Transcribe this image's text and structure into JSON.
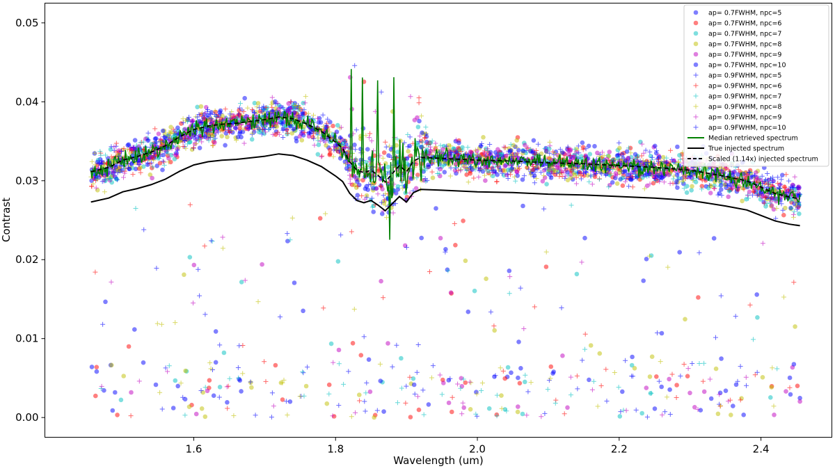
{
  "chart_data": {
    "type": "scatter",
    "title": "",
    "xlabel": "Wavelength (um)",
    "ylabel": "Contrast",
    "xlim": [
      1.39,
      2.5
    ],
    "ylim": [
      -0.0025,
      0.0525
    ],
    "xticks": [
      1.6,
      1.8,
      2.0,
      2.2,
      2.4
    ],
    "xtick_labels": [
      "1.6",
      "1.8",
      "2.0",
      "2.2",
      "2.4"
    ],
    "yticks": [
      0.0,
      0.01,
      0.02,
      0.03,
      0.04,
      0.05
    ],
    "ytick_labels": [
      "0.00",
      "0.01",
      "0.02",
      "0.03",
      "0.04",
      "0.05"
    ],
    "grid": false,
    "legend_position": "top-right",
    "wavelength_range": [
      1.455,
      2.455
    ],
    "series": [
      {
        "name": "ap= 0.7FWHM, npc=5",
        "marker": "circle",
        "color": "#0000ff"
      },
      {
        "name": "ap= 0.7FWHM, npc=6",
        "marker": "circle",
        "color": "#ff0000"
      },
      {
        "name": "ap= 0.7FWHM, npc=7",
        "marker": "circle",
        "color": "#00bfbf"
      },
      {
        "name": "ap= 0.7FWHM, npc=8",
        "marker": "circle",
        "color": "#bfbf00"
      },
      {
        "name": "ap= 0.7FWHM, npc=9",
        "marker": "circle",
        "color": "#bf00bf"
      },
      {
        "name": "ap= 0.7FWHM, npc=10",
        "marker": "circle",
        "color": "#0000ff"
      },
      {
        "name": "ap= 0.9FWHM, npc=5",
        "marker": "plus",
        "color": "#0000ff"
      },
      {
        "name": "ap= 0.9FWHM, npc=6",
        "marker": "plus",
        "color": "#ff0000"
      },
      {
        "name": "ap= 0.9FWHM, npc=7",
        "marker": "plus",
        "color": "#00bfbf"
      },
      {
        "name": "ap= 0.9FWHM, npc=8",
        "marker": "plus",
        "color": "#bfbf00"
      },
      {
        "name": "ap= 0.9FWHM, npc=9",
        "marker": "plus",
        "color": "#bf00bf"
      },
      {
        "name": "ap= 0.9FWHM, npc=10",
        "marker": "plus",
        "color": "#0000ff"
      }
    ],
    "lines": [
      {
        "name": "Median retrieved spectrum",
        "color": "#008000",
        "style": "solid"
      },
      {
        "name": "True injected spectrum",
        "color": "#000000",
        "style": "solid",
        "x": [
          1.455,
          1.48,
          1.5,
          1.52,
          1.54,
          1.56,
          1.58,
          1.6,
          1.62,
          1.64,
          1.66,
          1.68,
          1.7,
          1.72,
          1.74,
          1.76,
          1.78,
          1.8,
          1.81,
          1.82,
          1.83,
          1.84,
          1.85,
          1.86,
          1.87,
          1.88,
          1.89,
          1.9,
          1.91,
          1.92,
          1.95,
          2.0,
          2.05,
          2.1,
          2.15,
          2.2,
          2.25,
          2.3,
          2.35,
          2.38,
          2.4,
          2.42,
          2.44,
          2.455
        ],
        "y": [
          0.0273,
          0.0278,
          0.0286,
          0.029,
          0.0295,
          0.0302,
          0.0312,
          0.032,
          0.0324,
          0.0326,
          0.0327,
          0.0329,
          0.0331,
          0.0334,
          0.0332,
          0.0326,
          0.0318,
          0.0306,
          0.0299,
          0.0284,
          0.0275,
          0.0272,
          0.0275,
          0.0269,
          0.0262,
          0.0271,
          0.028,
          0.0273,
          0.0285,
          0.0289,
          0.0288,
          0.0286,
          0.0285,
          0.0283,
          0.0282,
          0.028,
          0.0278,
          0.0275,
          0.0268,
          0.0263,
          0.0256,
          0.0249,
          0.0245,
          0.0243
        ]
      },
      {
        "name": "Scaled (1.14x) injected spectrum",
        "color": "#000000",
        "style": "dashed",
        "scale": 1.14
      }
    ]
  }
}
